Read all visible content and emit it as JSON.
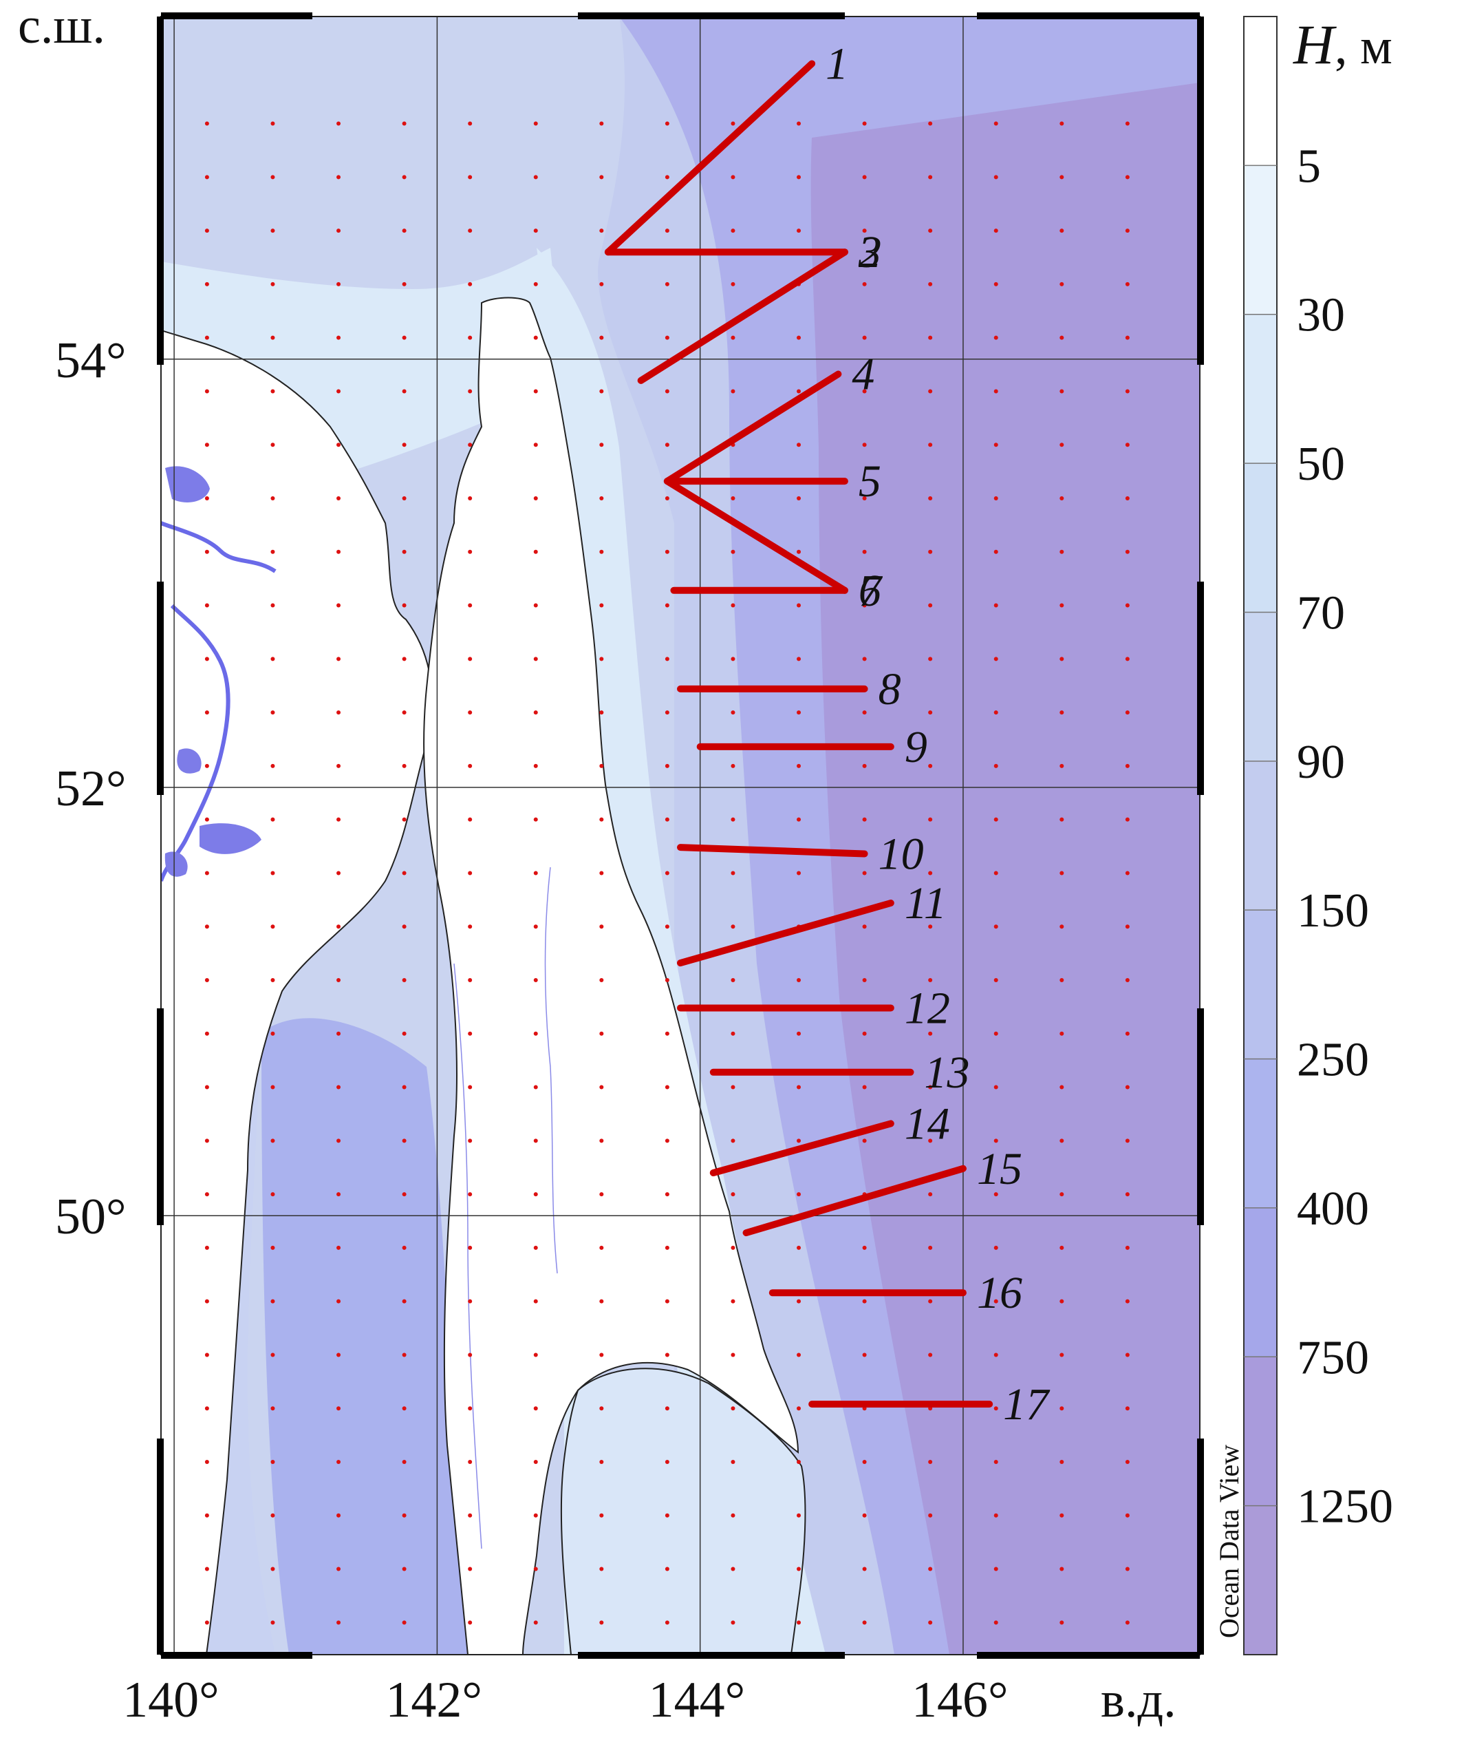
{
  "axes": {
    "lat_unit": "с.ш.",
    "lon_unit": "в.д.",
    "lat_ticks": [
      {
        "value": 54,
        "label": "54°"
      },
      {
        "value": 52,
        "label": "52°"
      },
      {
        "value": 50,
        "label": "50°"
      }
    ],
    "lon_ticks": [
      {
        "value": 140,
        "label": "140°"
      },
      {
        "value": 142,
        "label": "142°"
      },
      {
        "value": 144,
        "label": "144°"
      },
      {
        "value": 146,
        "label": "146°"
      }
    ],
    "lon_range": [
      139.9,
      147.8
    ],
    "lat_range": [
      47.95,
      55.6
    ]
  },
  "colorbar": {
    "title_var": "H",
    "title_unit": ", м",
    "levels": [
      "5",
      "30",
      "50",
      "70",
      "90",
      "150",
      "250",
      "400",
      "750",
      "1250"
    ],
    "colors": [
      "#ffffff",
      "#e9f3fc",
      "#dbeaf9",
      "#cfe0f5",
      "#c9d6f1",
      "#c3ccef",
      "#b8c1ee",
      "#acb4ee",
      "#a5a7ea",
      "#a99bdc",
      "#ab9bd8"
    ],
    "credit": "Ocean Data View"
  },
  "colors": {
    "section_line": "#cc0000",
    "station_dot": "#dd1111",
    "land": "#ffffff",
    "coast": "#222222",
    "river": "#6a6ae8",
    "grid": "#333333"
  },
  "sections": [
    {
      "label": "1",
      "from": [
        143.3,
        54.5
      ],
      "to": [
        144.85,
        55.38
      ]
    },
    {
      "label": "2",
      "from": [
        143.3,
        54.5
      ],
      "to": [
        145.1,
        54.5
      ]
    },
    {
      "label": "3",
      "from": [
        143.55,
        53.9
      ],
      "to": [
        145.1,
        54.5
      ]
    },
    {
      "label": "4",
      "from": [
        143.75,
        53.43
      ],
      "to": [
        145.05,
        53.93
      ]
    },
    {
      "label": "5",
      "from": [
        143.75,
        53.43
      ],
      "to": [
        145.1,
        53.43
      ]
    },
    {
      "label": "6",
      "from": [
        143.75,
        53.43
      ],
      "to": [
        145.1,
        52.92
      ]
    },
    {
      "label": "7",
      "from": [
        143.8,
        52.92
      ],
      "to": [
        145.1,
        52.92
      ]
    },
    {
      "label": "8",
      "from": [
        143.85,
        52.46
      ],
      "to": [
        145.25,
        52.46
      ]
    },
    {
      "label": "9",
      "from": [
        144.0,
        52.19
      ],
      "to": [
        145.45,
        52.19
      ]
    },
    {
      "label": "10",
      "from": [
        143.85,
        51.72
      ],
      "to": [
        145.25,
        51.69
      ]
    },
    {
      "label": "11",
      "from": [
        143.85,
        51.18
      ],
      "to": [
        145.45,
        51.46
      ]
    },
    {
      "label": "12",
      "from": [
        143.85,
        50.97
      ],
      "to": [
        145.45,
        50.97
      ]
    },
    {
      "label": "13",
      "from": [
        144.1,
        50.67
      ],
      "to": [
        145.6,
        50.67
      ]
    },
    {
      "label": "14",
      "from": [
        144.1,
        50.2
      ],
      "to": [
        145.45,
        50.43
      ]
    },
    {
      "label": "15",
      "from": [
        144.35,
        49.92
      ],
      "to": [
        146.0,
        50.22
      ]
    },
    {
      "label": "16",
      "from": [
        144.55,
        49.64
      ],
      "to": [
        146.0,
        49.64
      ]
    },
    {
      "label": "17",
      "from": [
        144.85,
        49.12
      ],
      "to": [
        146.2,
        49.12
      ]
    }
  ],
  "station_grid": {
    "lon_start": 140.25,
    "lon_end": 147.55,
    "lon_step": 0.25,
    "lat_start": 48.1,
    "lat_end": 55.3,
    "lat_step": 0.25
  }
}
